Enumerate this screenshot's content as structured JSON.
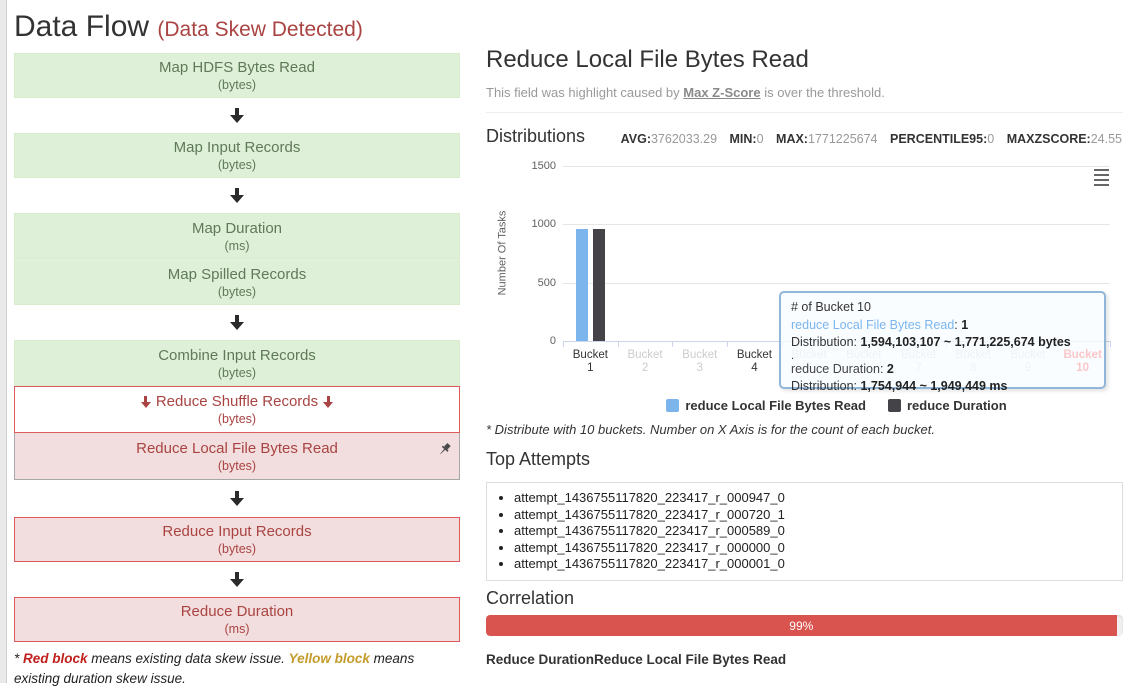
{
  "page_title": {
    "main": "Data Flow",
    "status": "(Data Skew Detected)"
  },
  "flow": {
    "blocks": [
      {
        "label": "Map HDFS Bytes Read",
        "unit": "(bytes)"
      },
      {
        "label": "Map Input Records",
        "unit": "(bytes)"
      },
      {
        "label": "Map Duration",
        "unit": "(ms)"
      },
      {
        "label": "Map Spilled Records",
        "unit": "(bytes)"
      },
      {
        "label": "Combine Input Records",
        "unit": "(bytes)"
      },
      {
        "label": "Reduce Shuffle Records",
        "unit": "(bytes)"
      },
      {
        "label": "Reduce Local File Bytes Read",
        "unit": "(bytes)"
      },
      {
        "label": "Reduce Input Records",
        "unit": "(bytes)"
      },
      {
        "label": "Reduce Duration",
        "unit": "(ms)"
      }
    ],
    "legend_note": {
      "prefix": "* ",
      "red_label": "Red block",
      "red_text": " means existing data skew issue. ",
      "yellow_label": "Yellow block",
      "yellow_text": " means existing duration skew issue."
    }
  },
  "detail": {
    "title": "Reduce Local File Bytes Read",
    "subtitle_prefix": "This field was highlight caused by ",
    "subtitle_link": "Max Z-Score",
    "subtitle_suffix": " is over the threshold.",
    "headings": {
      "distributions": "Distributions",
      "top_attempts": "Top Attempts",
      "correlation": "Correlation"
    },
    "stats": [
      {
        "label": "AVG:",
        "value": "3762033.29"
      },
      {
        "label": "MIN:",
        "value": "0"
      },
      {
        "label": "MAX:",
        "value": "1771225674"
      },
      {
        "label": "PERCENTILE95:",
        "value": "0"
      },
      {
        "label": "MAXZSCORE:",
        "value": "24.55"
      }
    ],
    "chart_note": "* Distribute with 10 buckets. Number on X Axis is for the count of each bucket.",
    "top_attempts": [
      "attempt_1436755117820_223417_r_000947_0",
      "attempt_1436755117820_223417_r_000720_1",
      "attempt_1436755117820_223417_r_000589_0",
      "attempt_1436755117820_223417_r_000000_0",
      "attempt_1436755117820_223417_r_000001_0"
    ],
    "correlation": {
      "percent": 99,
      "percent_label": "99%",
      "pair": [
        "Reduce Duration",
        "Reduce Local File Bytes Read"
      ]
    }
  },
  "chart_data": {
    "type": "bar",
    "title": "",
    "xlabel": "",
    "ylabel": "Number Of Tasks",
    "ylim": [
      0,
      1500
    ],
    "yticks": [
      0,
      500,
      1000,
      1500
    ],
    "grid": true,
    "legend_position": "bottom",
    "categories": [
      "Bucket 1",
      "Bucket 2",
      "Bucket 3",
      "Bucket 4",
      "Bucket 5",
      "Bucket 6",
      "Bucket 7",
      "Bucket 8",
      "Bucket 9",
      "Bucket 10"
    ],
    "category_label_colors": [
      "#333",
      "#ccc",
      "#ccc",
      "#333",
      "#ccc",
      "#ccc",
      "#ccc",
      "#ccc",
      "#ccc",
      "#f00"
    ],
    "series": [
      {
        "name": "reduce Local File Bytes Read",
        "color": "#7cb5ec",
        "values": [
          960,
          0,
          0,
          0,
          0,
          0,
          0,
          0,
          0,
          1
        ]
      },
      {
        "name": "reduce Duration",
        "color": "#434348",
        "values": [
          960,
          0,
          0,
          0,
          0,
          0,
          0,
          0,
          0,
          2
        ]
      }
    ],
    "tooltip": {
      "header": "# of Bucket 10",
      "separator": ".",
      "rows": [
        {
          "series": "reduce Local File Bytes Read",
          "count": "1",
          "dist_label": "Distribution: ",
          "distribution": "1,594,103,107 ~ 1,771,225,674 bytes"
        },
        {
          "series": "reduce Duration",
          "count": "2",
          "dist_label": "Distribution: ",
          "distribution": "1,754,944 ~ 1,949,449 ms"
        }
      ]
    }
  }
}
